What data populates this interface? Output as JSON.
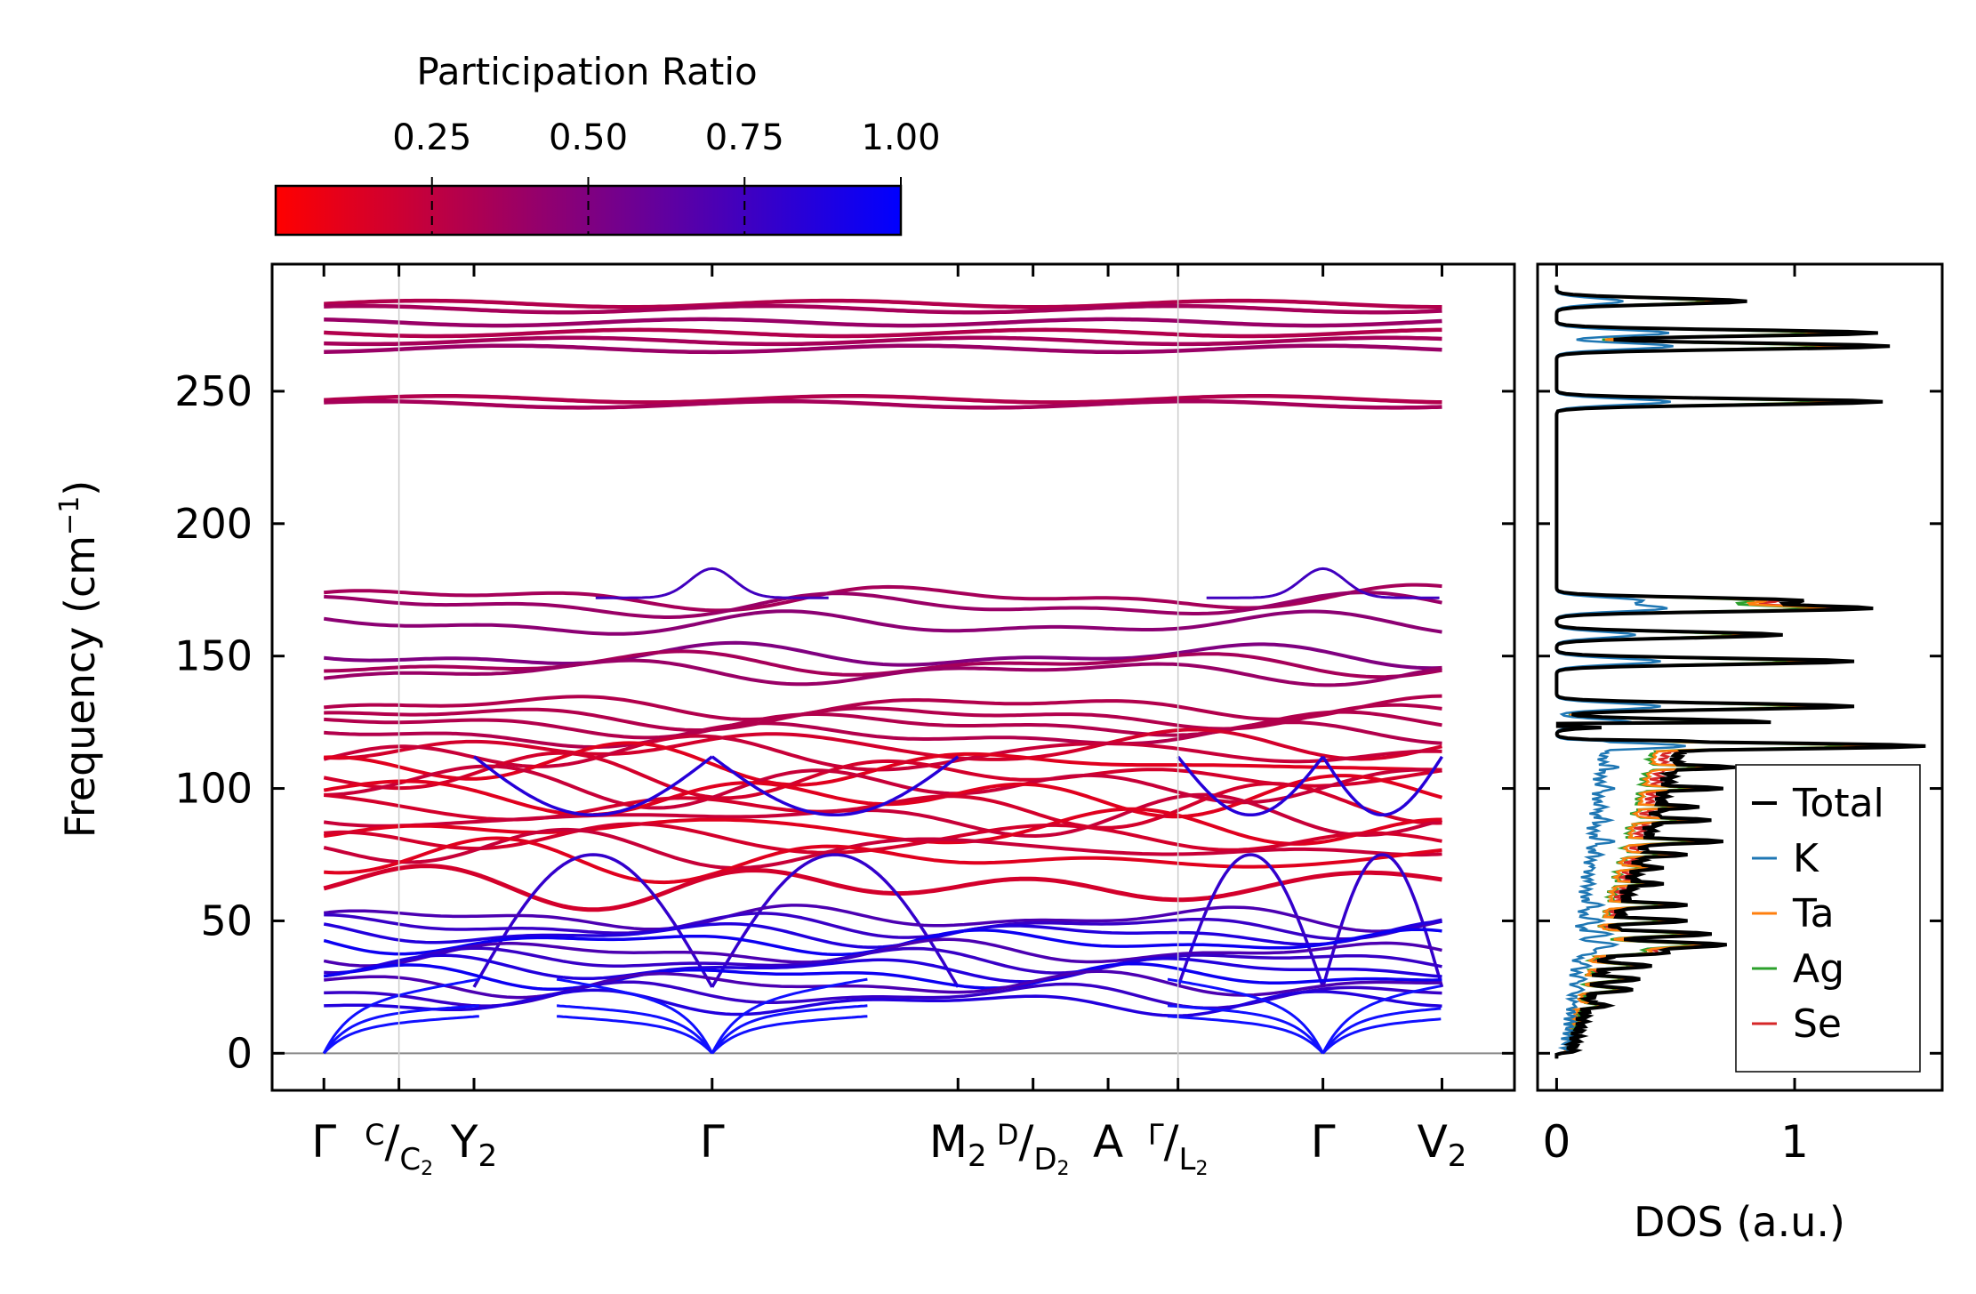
{
  "chart_data": [
    {
      "type": "line",
      "name": "phonon-band-structure",
      "ylabel": "Frequency (cm",
      "ylabel_sup": "−1",
      "ylabel_close": ")",
      "ylim": [
        -14,
        298
      ],
      "yticks": [
        0,
        50,
        100,
        150,
        200,
        250
      ],
      "xlim": [
        -0.2,
        4.6
      ],
      "high_symmetry_points": [
        {
          "x": 0.0,
          "label": "Γ"
        },
        {
          "x": 0.29,
          "label": "C",
          "sub": "C",
          "sub2": "2",
          "slash": "/",
          "combined": true
        },
        {
          "x": 0.58,
          "label": "Y",
          "sub": "2"
        },
        {
          "x": 1.5,
          "label": "Γ"
        },
        {
          "x": 2.45,
          "label": "M",
          "sub": "2"
        },
        {
          "x": 2.74,
          "label": "D",
          "sub": "D",
          "sub2": "2",
          "slash": "/",
          "combined": true
        },
        {
          "x": 3.03,
          "label": "A"
        },
        {
          "x": 3.3,
          "label": "Γ",
          "sub": "L",
          "sub2": "2",
          "slash": "/",
          "combined": true
        },
        {
          "x": 3.86,
          "label": "Γ"
        },
        {
          "x": 4.32,
          "label": "V",
          "sub": "2"
        }
      ],
      "discontinuities": [
        0.29,
        3.3
      ],
      "flat_bands_high": [
        283,
        281,
        276,
        272,
        269,
        266,
        247,
        245
      ],
      "optical_mid": [
        172,
        169,
        162,
        150,
        147,
        144,
        131,
        127,
        124,
        120,
        116,
        113,
        109,
        105,
        101,
        97,
        93,
        89,
        85,
        81,
        77,
        73,
        63
      ],
      "low_modes": [
        51,
        48,
        45,
        42,
        38,
        35,
        32,
        29,
        26,
        22,
        19
      ],
      "colorbar": {
        "title": "Participation Ratio",
        "ticks": [
          "0.25",
          "0.50",
          "0.75",
          "1.00"
        ],
        "tick_values": [
          0.25,
          0.5,
          0.75,
          1.0
        ],
        "range": [
          0.0,
          1.0
        ],
        "low_color": "#ff0000",
        "high_color": "#0000ff"
      }
    },
    {
      "type": "line",
      "name": "phonon-dos",
      "xlabel": "DOS (a.u.)",
      "xticks": [
        "0",
        "1"
      ],
      "xlim": [
        -0.08,
        1.62
      ],
      "ylim": [
        -14,
        298
      ],
      "series": [
        {
          "name": "Total",
          "color": "#000000"
        },
        {
          "name": "K",
          "color": "#1f77b4"
        },
        {
          "name": "Ta",
          "color": "#ff7f0e"
        },
        {
          "name": "Ag",
          "color": "#2ca02c"
        },
        {
          "name": "Se",
          "color": "#d62728"
        }
      ],
      "peaks_total": [
        [
          284,
          0.8
        ],
        [
          272,
          1.35
        ],
        [
          267,
          1.4
        ],
        [
          246,
          1.37
        ],
        [
          171,
          1.0
        ],
        [
          168,
          1.3
        ],
        [
          158,
          0.95
        ],
        [
          148,
          1.25
        ],
        [
          131,
          1.25
        ],
        [
          125,
          0.9
        ],
        [
          116,
          1.55
        ],
        [
          108,
          0.75
        ],
        [
          100,
          0.7
        ],
        [
          93,
          0.6
        ],
        [
          88,
          0.65
        ],
        [
          80,
          0.7
        ],
        [
          75,
          0.55
        ],
        [
          70,
          0.45
        ],
        [
          64,
          0.45
        ],
        [
          56,
          0.55
        ],
        [
          50,
          0.55
        ],
        [
          45,
          0.65
        ],
        [
          41,
          0.7
        ],
        [
          38,
          0.45
        ],
        [
          33,
          0.4
        ],
        [
          28,
          0.35
        ],
        [
          24,
          0.32
        ],
        [
          18,
          0.22
        ],
        [
          12,
          0.12
        ],
        [
          6,
          0.06
        ]
      ],
      "legend_position": "lower-right"
    }
  ]
}
